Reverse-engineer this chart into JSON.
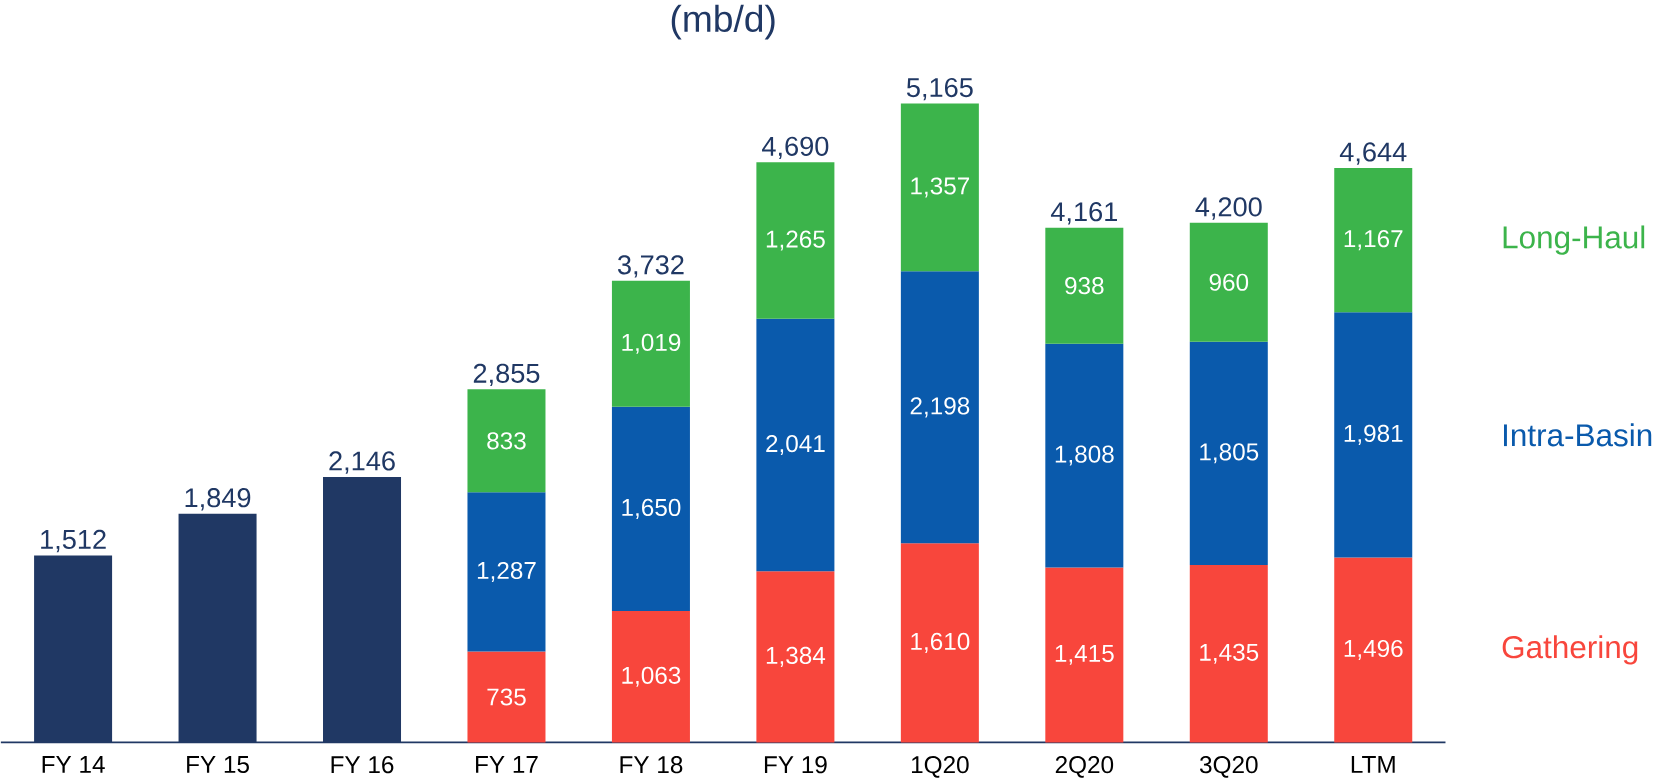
{
  "chart_data": {
    "type": "bar",
    "title": "(mb/d)",
    "stacked": true,
    "categories": [
      "FY 14",
      "FY 15",
      "FY 16",
      "FY 17",
      "FY 18",
      "FY 19",
      "1Q20",
      "2Q20",
      "3Q20",
      "LTM"
    ],
    "series": [
      {
        "color": "#203864",
        "values": [
          1512,
          1849,
          2146,
          null,
          null,
          null,
          null,
          null,
          null,
          null
        ],
        "value_labels": [
          null,
          null,
          null,
          null,
          null,
          null,
          null,
          null,
          null,
          null
        ]
      },
      {
        "name": "Gathering",
        "color": "#f8463c",
        "values": [
          null,
          null,
          null,
          735,
          1063,
          1384,
          1610,
          1415,
          1435,
          1496
        ],
        "value_labels": [
          null,
          null,
          null,
          "735",
          "1,063",
          "1,384",
          "1,610",
          "1,415",
          "1,435",
          "1,496"
        ]
      },
      {
        "name": "Intra-Basin",
        "color": "#0a5aac",
        "values": [
          null,
          null,
          null,
          1287,
          1650,
          2041,
          2198,
          1808,
          1805,
          1981
        ],
        "value_labels": [
          null,
          null,
          null,
          "1,287",
          "1,650",
          "2,041",
          "2,198",
          "1,808",
          "1,805",
          "1,981"
        ]
      },
      {
        "name": "Long-Haul",
        "color": "#3cb44b",
        "values": [
          null,
          null,
          null,
          833,
          1019,
          1265,
          1357,
          938,
          960,
          1167
        ],
        "value_labels": [
          null,
          null,
          null,
          "833",
          "1,019",
          "1,265",
          "1,357",
          "938",
          "960",
          "1,167"
        ]
      }
    ],
    "totals": [
      "1,512",
      "1,849",
      "2,146",
      "2,855",
      "3,732",
      "4,690",
      "5,165",
      "4,161",
      "4,200",
      "4,644"
    ],
    "grid": false
  }
}
